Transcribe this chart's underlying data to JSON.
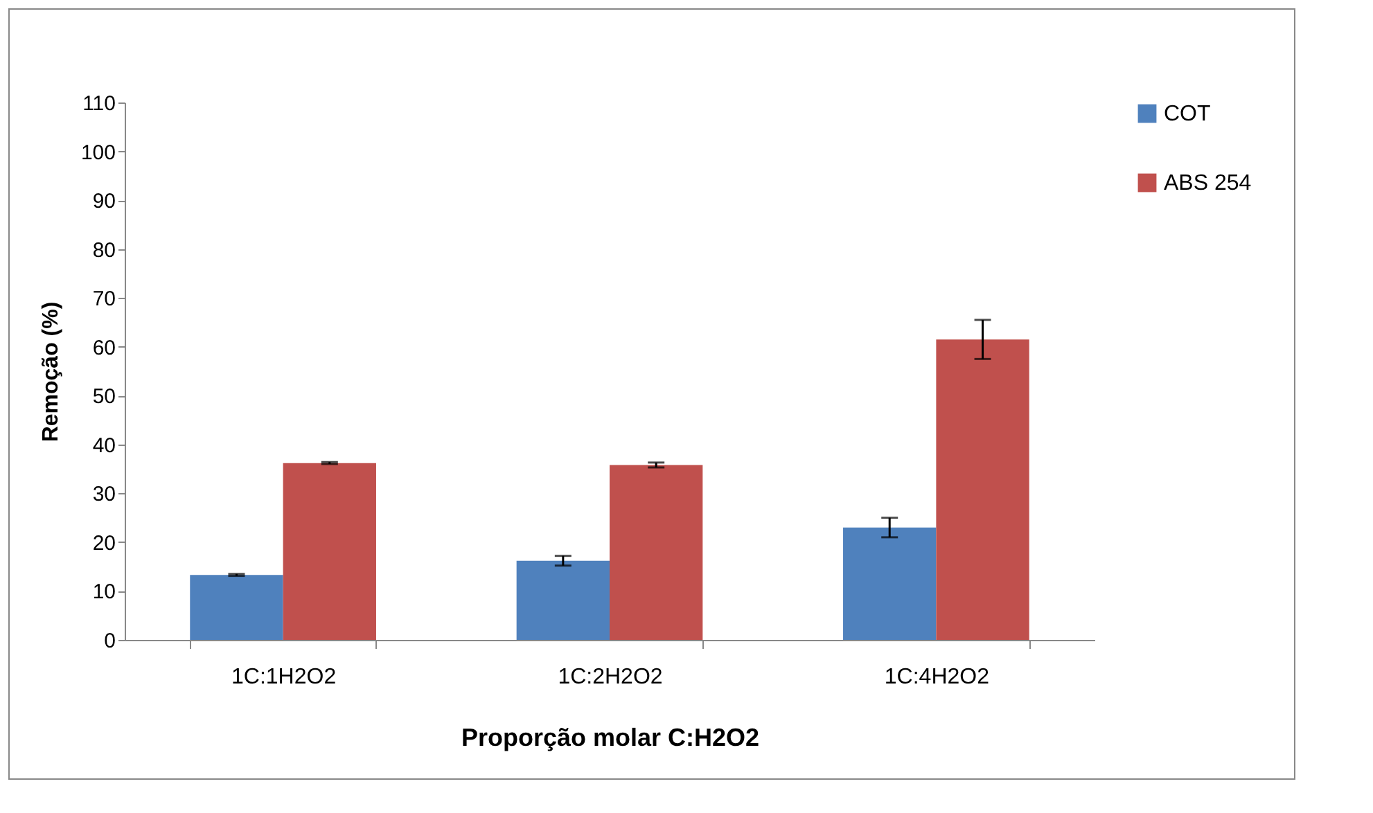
{
  "chart_data": {
    "type": "bar",
    "xlabel": "Proporção molar C:H2O2",
    "ylabel": "Remoção (%)",
    "categories": [
      "1C:1H2O2",
      "1C:2H2O2",
      "1C:4H2O2"
    ],
    "series": [
      {
        "name": "COT",
        "color": "#4f81bd",
        "values": [
          13.3,
          16.2,
          23
        ],
        "errors": [
          0.2,
          1,
          2
        ]
      },
      {
        "name": "ABS 254",
        "color": "#c0504d",
        "values": [
          36.2,
          35.8,
          61.5
        ],
        "errors": [
          0.2,
          0.5,
          4
        ]
      }
    ],
    "ylim": [
      0,
      110
    ],
    "yticks": [
      0,
      10,
      20,
      30,
      40,
      50,
      60,
      70,
      80,
      90,
      100,
      110
    ],
    "grid": false,
    "legend": "right"
  }
}
